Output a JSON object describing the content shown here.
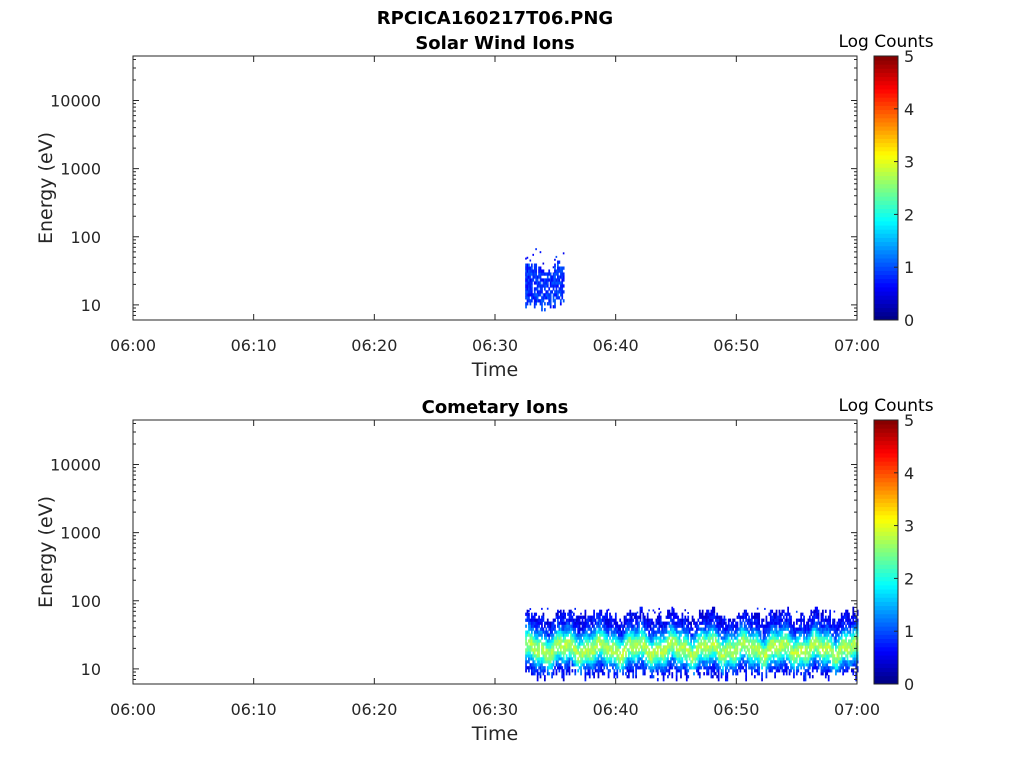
{
  "figure": {
    "title": "RPCICA160217T06.PNG"
  },
  "chart_data": [
    {
      "type": "heatmap",
      "title": "Solar Wind Ions",
      "xlabel": "Time",
      "ylabel": "Energy (eV)",
      "x_ticks": [
        "06:00",
        "06:10",
        "06:20",
        "06:30",
        "06:40",
        "06:50",
        "07:00"
      ],
      "xlim": [
        "06:00",
        "07:00"
      ],
      "y_scale": "log",
      "y_ticks": [
        "10",
        "100",
        "1000",
        "10000"
      ],
      "ylim": [
        6,
        45000
      ],
      "colorbar": {
        "label": "Log Counts",
        "ticks": [
          "0",
          "1",
          "2",
          "3",
          "4",
          "5"
        ],
        "range": [
          0,
          5
        ],
        "colormap": "jet"
      },
      "regions": [
        {
          "start": "06:32:30",
          "end": "06:35:40",
          "emin": 8,
          "emax": 45,
          "level": 0.6,
          "note_sparse_above": 70
        }
      ]
    },
    {
      "type": "heatmap",
      "title": "Cometary Ions",
      "xlabel": "Time",
      "ylabel": "Energy (eV)",
      "x_ticks": [
        "06:00",
        "06:10",
        "06:20",
        "06:30",
        "06:40",
        "06:50",
        "07:00"
      ],
      "xlim": [
        "06:00",
        "07:00"
      ],
      "y_scale": "log",
      "y_ticks": [
        "10",
        "100",
        "1000",
        "10000"
      ],
      "ylim": [
        6,
        45000
      ],
      "colorbar": {
        "label": "Log Counts",
        "ticks": [
          "0",
          "1",
          "2",
          "3",
          "4",
          "5"
        ],
        "range": [
          0,
          5
        ],
        "colormap": "jet"
      },
      "regions": [
        {
          "start": "06:32:30",
          "end": "07:00:00",
          "emin": 7,
          "emax": 80,
          "peak_energy": 20,
          "peak_level": 2.2
        }
      ]
    }
  ]
}
